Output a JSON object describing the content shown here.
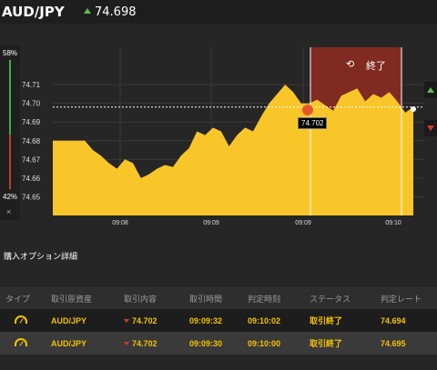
{
  "header": {
    "pair": "AUD/JPY",
    "price": "74.698"
  },
  "probability": {
    "up": "58%",
    "down": "42%",
    "close": "×"
  },
  "chart": {
    "y_ticks": [
      "74.71",
      "74.70",
      "74.69",
      "74.68",
      "74.67",
      "74.66",
      "74.65"
    ],
    "x_ticks": [
      "09:08",
      "09:09",
      "09:09",
      "09:10"
    ],
    "badge_price": "74.702",
    "end_label": "終了",
    "end_icon": "⟲",
    "colors": {
      "area": "#f9c62a",
      "expiry_zone": "#8b2b22",
      "bg": "#262626"
    }
  },
  "chart_data": {
    "type": "area",
    "series_name": "AUD/JPY",
    "ylim": [
      74.64,
      74.73
    ],
    "x_ticks": [
      "09:08",
      "09:09",
      "09:09",
      "09:10"
    ],
    "reference_price": 74.698,
    "points": [
      74.68,
      74.68,
      74.68,
      74.68,
      74.68,
      74.675,
      74.672,
      74.668,
      74.665,
      74.67,
      74.668,
      74.66,
      74.662,
      74.665,
      74.667,
      74.666,
      74.672,
      74.676,
      74.685,
      74.683,
      74.687,
      74.685,
      74.677,
      74.683,
      74.687,
      74.685,
      74.693,
      74.7,
      74.705,
      74.71,
      74.706,
      74.7,
      74.7,
      74.702,
      74.699,
      74.696,
      74.704,
      74.706,
      74.708,
      74.701,
      74.705,
      74.703,
      74.706,
      74.701,
      74.695,
      74.698
    ]
  },
  "section": {
    "title": "購入オプション詳細"
  },
  "table": {
    "headers": [
      "タイプ",
      "取引原資産",
      "取引内容",
      "取引時間",
      "判定時刻",
      "ステータス",
      "判定レート"
    ],
    "rows": [
      {
        "asset": "AUD/JPY",
        "content": "74.702",
        "time": "09:09:32",
        "judge_time": "09:10:02",
        "status": "取引終了",
        "rate": "74.694"
      },
      {
        "asset": "AUD/JPY",
        "content": "74.702",
        "time": "09:09:30",
        "judge_time": "09:10:00",
        "status": "取引終了",
        "rate": "74.695"
      }
    ]
  }
}
